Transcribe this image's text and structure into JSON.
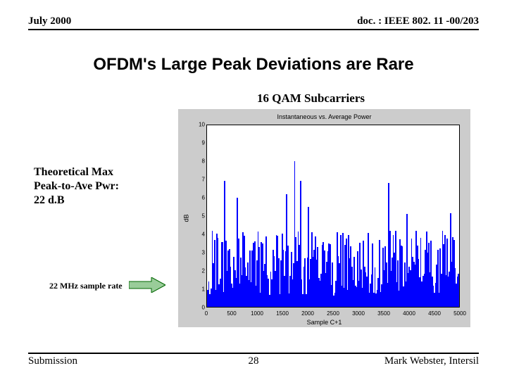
{
  "header": {
    "date": "July 2000",
    "docnum": "doc. : IEEE 802. 11 -00/203"
  },
  "title": "OFDM's Large Peak Deviations are Rare",
  "subcarrier_label": "16 QAM Subcarriers",
  "annotation": {
    "line1": "Theoretical Max",
    "line2": "Peak-to-Ave Pwr:",
    "line3": "22 d.B"
  },
  "sample_rate": "22 MHz sample rate",
  "chart": {
    "type": "dense-bar-spectrum",
    "title": "Instantaneous vs. Average Power",
    "ylabel": "dB",
    "xlabel": "Sample C+1",
    "ylim": [
      0,
      10
    ],
    "ytick_step": 1,
    "xlim": [
      0,
      5000
    ],
    "xtick_step": 500,
    "background_color": "#cccccc",
    "plot_bg": "#ffffff",
    "bar_color": "#0000ff",
    "border_color": "#000000",
    "label_fontsize": 9,
    "tick_fontsize": 8,
    "n_bars": 220,
    "baseline_mean_db": 2.0,
    "peak_max_db": 8.6,
    "tall_peak_prob": 0.07
  },
  "arrow": {
    "fill": "#99cc99",
    "stroke": "#006600"
  },
  "footer": {
    "left": "Submission",
    "page": "28",
    "right": "Mark Webster, Intersil"
  }
}
